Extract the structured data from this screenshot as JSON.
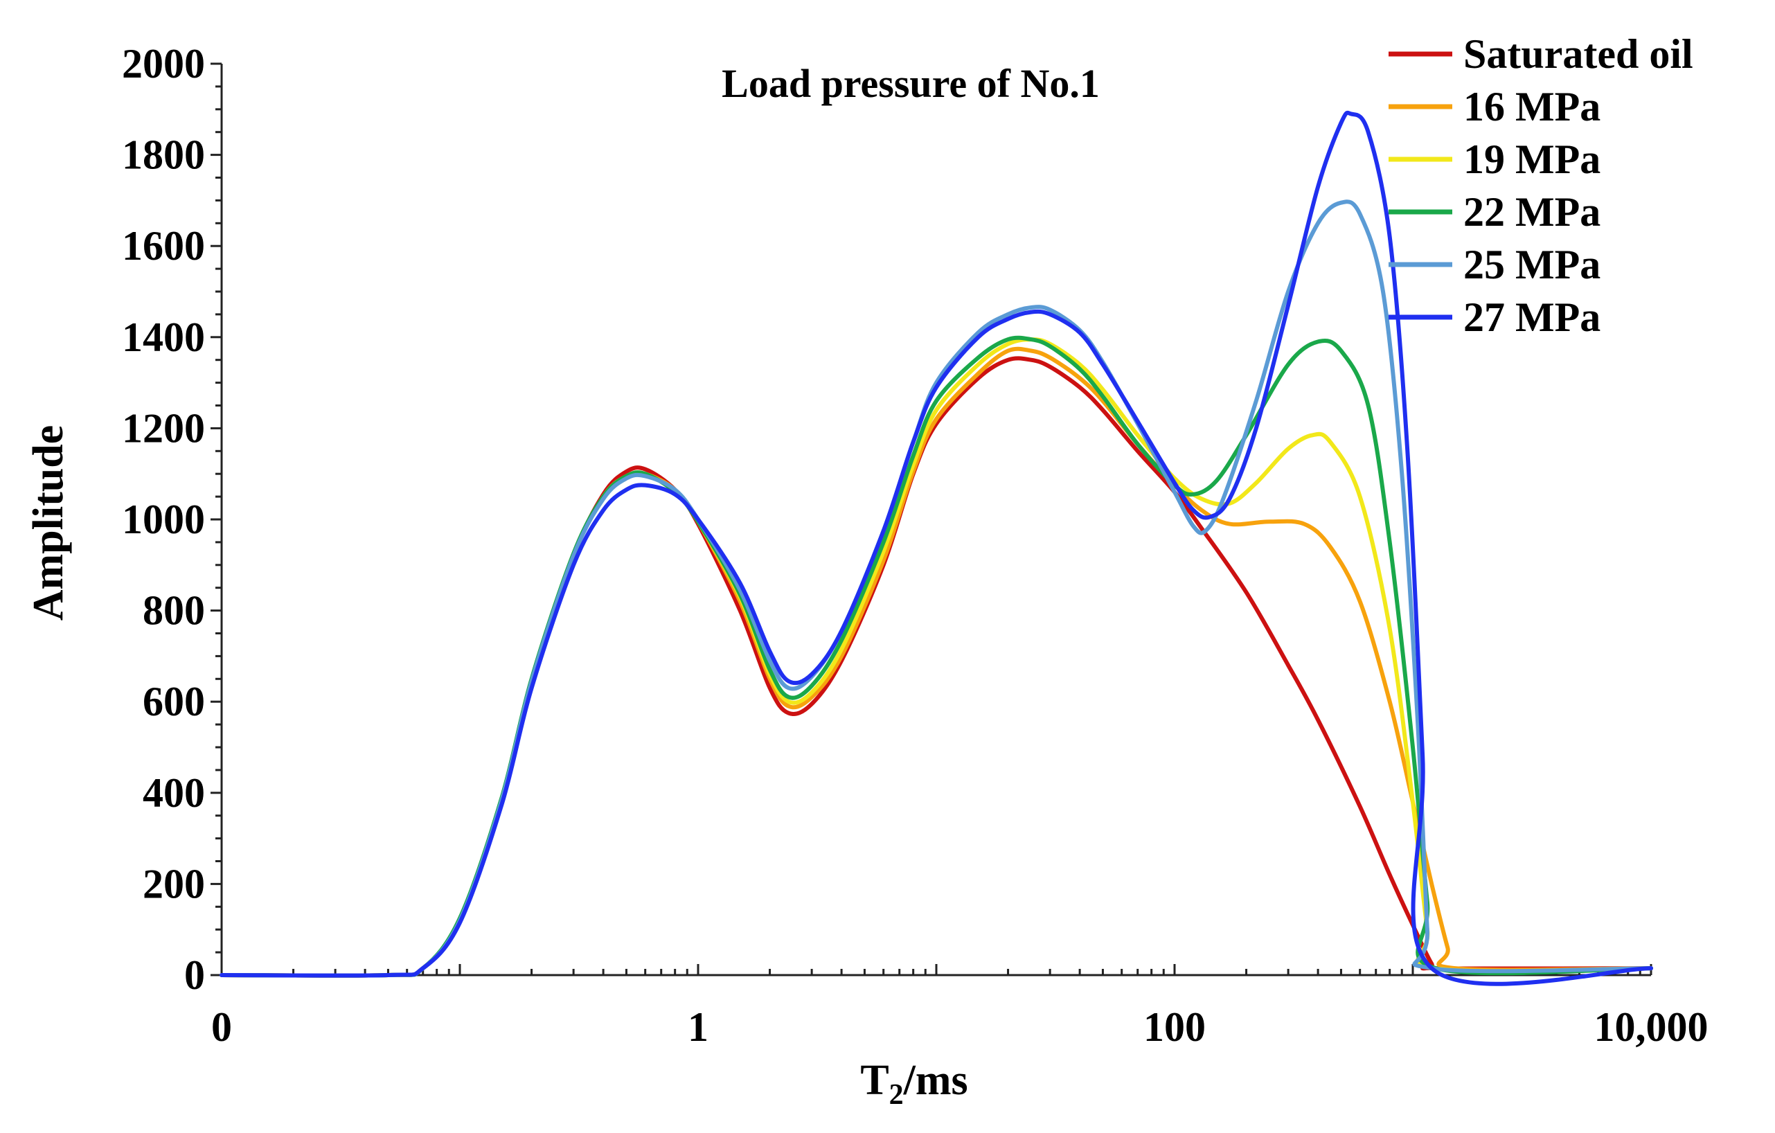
{
  "chart_data": {
    "type": "line",
    "title": "Load pressure of No.1",
    "xlabel": "T",
    "xlabel_sub": "2",
    "xlabel_suffix": "/ms",
    "ylabel": "Amplitude",
    "x_scale": "log",
    "xlim": [
      0.01,
      10000
    ],
    "ylim": [
      0,
      2000
    ],
    "x_tick_values": [
      0.01,
      1,
      100,
      10000
    ],
    "x_tick_labels": [
      "0",
      "1",
      "100",
      "10,000"
    ],
    "y_ticks": [
      0,
      200,
      400,
      600,
      800,
      1000,
      1200,
      1400,
      1600,
      1800,
      2000
    ],
    "y_minor_step": 50,
    "legend_position": "top-right",
    "grid": false,
    "series": [
      {
        "name": "Saturated oil",
        "color": "#cc1111",
        "points": [
          [
            0.01,
            0
          ],
          [
            0.05,
            0
          ],
          [
            0.07,
            15
          ],
          [
            0.1,
            120
          ],
          [
            0.15,
            380
          ],
          [
            0.2,
            640
          ],
          [
            0.3,
            920
          ],
          [
            0.4,
            1055
          ],
          [
            0.5,
            1105
          ],
          [
            0.6,
            1110
          ],
          [
            0.8,
            1065
          ],
          [
            1.0,
            990
          ],
          [
            1.5,
            800
          ],
          [
            2.0,
            630
          ],
          [
            2.4,
            575
          ],
          [
            3.0,
            595
          ],
          [
            4.0,
            690
          ],
          [
            6.0,
            900
          ],
          [
            8.0,
            1100
          ],
          [
            10,
            1210
          ],
          [
            15,
            1310
          ],
          [
            20,
            1350
          ],
          [
            25,
            1350
          ],
          [
            30,
            1335
          ],
          [
            40,
            1290
          ],
          [
            50,
            1240
          ],
          [
            70,
            1150
          ],
          [
            100,
            1060
          ],
          [
            130,
            980
          ],
          [
            200,
            840
          ],
          [
            300,
            680
          ],
          [
            400,
            560
          ],
          [
            600,
            370
          ],
          [
            800,
            220
          ],
          [
            1000,
            110
          ],
          [
            1200,
            25
          ],
          [
            1300,
            15
          ],
          [
            10000,
            15
          ]
        ]
      },
      {
        "name": "16 MPa",
        "color": "#f7a20d",
        "points": [
          [
            0.01,
            0
          ],
          [
            0.05,
            0
          ],
          [
            0.07,
            15
          ],
          [
            0.1,
            120
          ],
          [
            0.15,
            380
          ],
          [
            0.2,
            640
          ],
          [
            0.3,
            920
          ],
          [
            0.4,
            1050
          ],
          [
            0.5,
            1095
          ],
          [
            0.6,
            1100
          ],
          [
            0.8,
            1065
          ],
          [
            1.0,
            995
          ],
          [
            1.5,
            820
          ],
          [
            2.0,
            650
          ],
          [
            2.4,
            590
          ],
          [
            3.0,
            610
          ],
          [
            4.0,
            700
          ],
          [
            6.0,
            910
          ],
          [
            8.0,
            1105
          ],
          [
            10,
            1220
          ],
          [
            15,
            1320
          ],
          [
            20,
            1370
          ],
          [
            25,
            1370
          ],
          [
            30,
            1355
          ],
          [
            40,
            1310
          ],
          [
            50,
            1260
          ],
          [
            70,
            1165
          ],
          [
            100,
            1075
          ],
          [
            130,
            1020
          ],
          [
            170,
            990
          ],
          [
            250,
            995
          ],
          [
            350,
            990
          ],
          [
            450,
            940
          ],
          [
            600,
            820
          ],
          [
            800,
            600
          ],
          [
            1000,
            380
          ],
          [
            1200,
            200
          ],
          [
            1400,
            60
          ],
          [
            1500,
            15
          ],
          [
            10000,
            15
          ]
        ]
      },
      {
        "name": "19 MPa",
        "color": "#f2e81a",
        "points": [
          [
            0.01,
            0
          ],
          [
            0.05,
            0
          ],
          [
            0.07,
            15
          ],
          [
            0.1,
            120
          ],
          [
            0.15,
            380
          ],
          [
            0.2,
            640
          ],
          [
            0.3,
            920
          ],
          [
            0.4,
            1050
          ],
          [
            0.5,
            1095
          ],
          [
            0.6,
            1100
          ],
          [
            0.8,
            1060
          ],
          [
            1.0,
            995
          ],
          [
            1.5,
            830
          ],
          [
            2.0,
            660
          ],
          [
            2.4,
            600
          ],
          [
            3.0,
            620
          ],
          [
            4.0,
            715
          ],
          [
            6.0,
            930
          ],
          [
            8.0,
            1120
          ],
          [
            10,
            1240
          ],
          [
            15,
            1340
          ],
          [
            20,
            1385
          ],
          [
            25,
            1395
          ],
          [
            30,
            1385
          ],
          [
            40,
            1340
          ],
          [
            50,
            1285
          ],
          [
            70,
            1185
          ],
          [
            100,
            1090
          ],
          [
            130,
            1045
          ],
          [
            170,
            1035
          ],
          [
            220,
            1080
          ],
          [
            300,
            1155
          ],
          [
            380,
            1185
          ],
          [
            450,
            1170
          ],
          [
            600,
            1050
          ],
          [
            800,
            760
          ],
          [
            1000,
            380
          ],
          [
            1150,
            100
          ],
          [
            1250,
            15
          ],
          [
            10000,
            15
          ]
        ]
      },
      {
        "name": "22 MPa",
        "color": "#1aa84a",
        "points": [
          [
            0.01,
            0
          ],
          [
            0.05,
            0
          ],
          [
            0.07,
            15
          ],
          [
            0.1,
            125
          ],
          [
            0.15,
            390
          ],
          [
            0.2,
            650
          ],
          [
            0.3,
            925
          ],
          [
            0.4,
            1050
          ],
          [
            0.5,
            1095
          ],
          [
            0.6,
            1100
          ],
          [
            0.8,
            1060
          ],
          [
            1.0,
            995
          ],
          [
            1.5,
            835
          ],
          [
            2.0,
            670
          ],
          [
            2.4,
            610
          ],
          [
            3.0,
            635
          ],
          [
            4.0,
            735
          ],
          [
            6.0,
            950
          ],
          [
            8.0,
            1140
          ],
          [
            10,
            1260
          ],
          [
            15,
            1355
          ],
          [
            20,
            1395
          ],
          [
            25,
            1395
          ],
          [
            30,
            1380
          ],
          [
            40,
            1330
          ],
          [
            50,
            1270
          ],
          [
            70,
            1165
          ],
          [
            100,
            1075
          ],
          [
            120,
            1055
          ],
          [
            150,
            1085
          ],
          [
            200,
            1185
          ],
          [
            300,
            1340
          ],
          [
            400,
            1390
          ],
          [
            500,
            1370
          ],
          [
            650,
            1250
          ],
          [
            800,
            950
          ],
          [
            1000,
            500
          ],
          [
            1150,
            160
          ],
          [
            1250,
            15
          ],
          [
            10000,
            15
          ]
        ]
      },
      {
        "name": "25 MPa",
        "color": "#5b9bd5",
        "points": [
          [
            0.01,
            0
          ],
          [
            0.05,
            0
          ],
          [
            0.07,
            15
          ],
          [
            0.1,
            120
          ],
          [
            0.15,
            385
          ],
          [
            0.2,
            645
          ],
          [
            0.3,
            920
          ],
          [
            0.4,
            1045
          ],
          [
            0.5,
            1090
          ],
          [
            0.6,
            1095
          ],
          [
            0.8,
            1065
          ],
          [
            1.0,
            1000
          ],
          [
            1.5,
            845
          ],
          [
            2.0,
            690
          ],
          [
            2.4,
            630
          ],
          [
            3.0,
            655
          ],
          [
            4.0,
            755
          ],
          [
            6.0,
            975
          ],
          [
            8.0,
            1170
          ],
          [
            10,
            1300
          ],
          [
            15,
            1410
          ],
          [
            20,
            1450
          ],
          [
            25,
            1465
          ],
          [
            30,
            1460
          ],
          [
            40,
            1415
          ],
          [
            50,
            1345
          ],
          [
            70,
            1210
          ],
          [
            100,
            1060
          ],
          [
            120,
            985
          ],
          [
            135,
            975
          ],
          [
            160,
            1045
          ],
          [
            220,
            1260
          ],
          [
            300,
            1500
          ],
          [
            400,
            1650
          ],
          [
            500,
            1695
          ],
          [
            600,
            1670
          ],
          [
            750,
            1500
          ],
          [
            900,
            1100
          ],
          [
            1050,
            550
          ],
          [
            1150,
            100
          ],
          [
            1200,
            15
          ],
          [
            10000,
            15
          ]
        ]
      },
      {
        "name": "27 MPa",
        "color": "#1f2ff0",
        "points": [
          [
            0.01,
            0
          ],
          [
            0.05,
            0
          ],
          [
            0.07,
            15
          ],
          [
            0.1,
            115
          ],
          [
            0.15,
            375
          ],
          [
            0.2,
            630
          ],
          [
            0.3,
            900
          ],
          [
            0.4,
            1020
          ],
          [
            0.5,
            1065
          ],
          [
            0.6,
            1075
          ],
          [
            0.8,
            1055
          ],
          [
            1.0,
            1000
          ],
          [
            1.5,
            860
          ],
          [
            2.0,
            710
          ],
          [
            2.4,
            645
          ],
          [
            3.0,
            660
          ],
          [
            4.0,
            755
          ],
          [
            6.0,
            975
          ],
          [
            8.0,
            1170
          ],
          [
            10,
            1290
          ],
          [
            15,
            1400
          ],
          [
            20,
            1440
          ],
          [
            25,
            1455
          ],
          [
            30,
            1450
          ],
          [
            40,
            1410
          ],
          [
            50,
            1340
          ],
          [
            70,
            1215
          ],
          [
            100,
            1080
          ],
          [
            120,
            1020
          ],
          [
            140,
            1005
          ],
          [
            170,
            1045
          ],
          [
            220,
            1200
          ],
          [
            300,
            1470
          ],
          [
            400,
            1730
          ],
          [
            500,
            1870
          ],
          [
            550,
            1890
          ],
          [
            650,
            1850
          ],
          [
            800,
            1620
          ],
          [
            950,
            1150
          ],
          [
            1100,
            480
          ],
          [
            1200,
            15
          ],
          [
            10000,
            15
          ]
        ]
      }
    ]
  }
}
